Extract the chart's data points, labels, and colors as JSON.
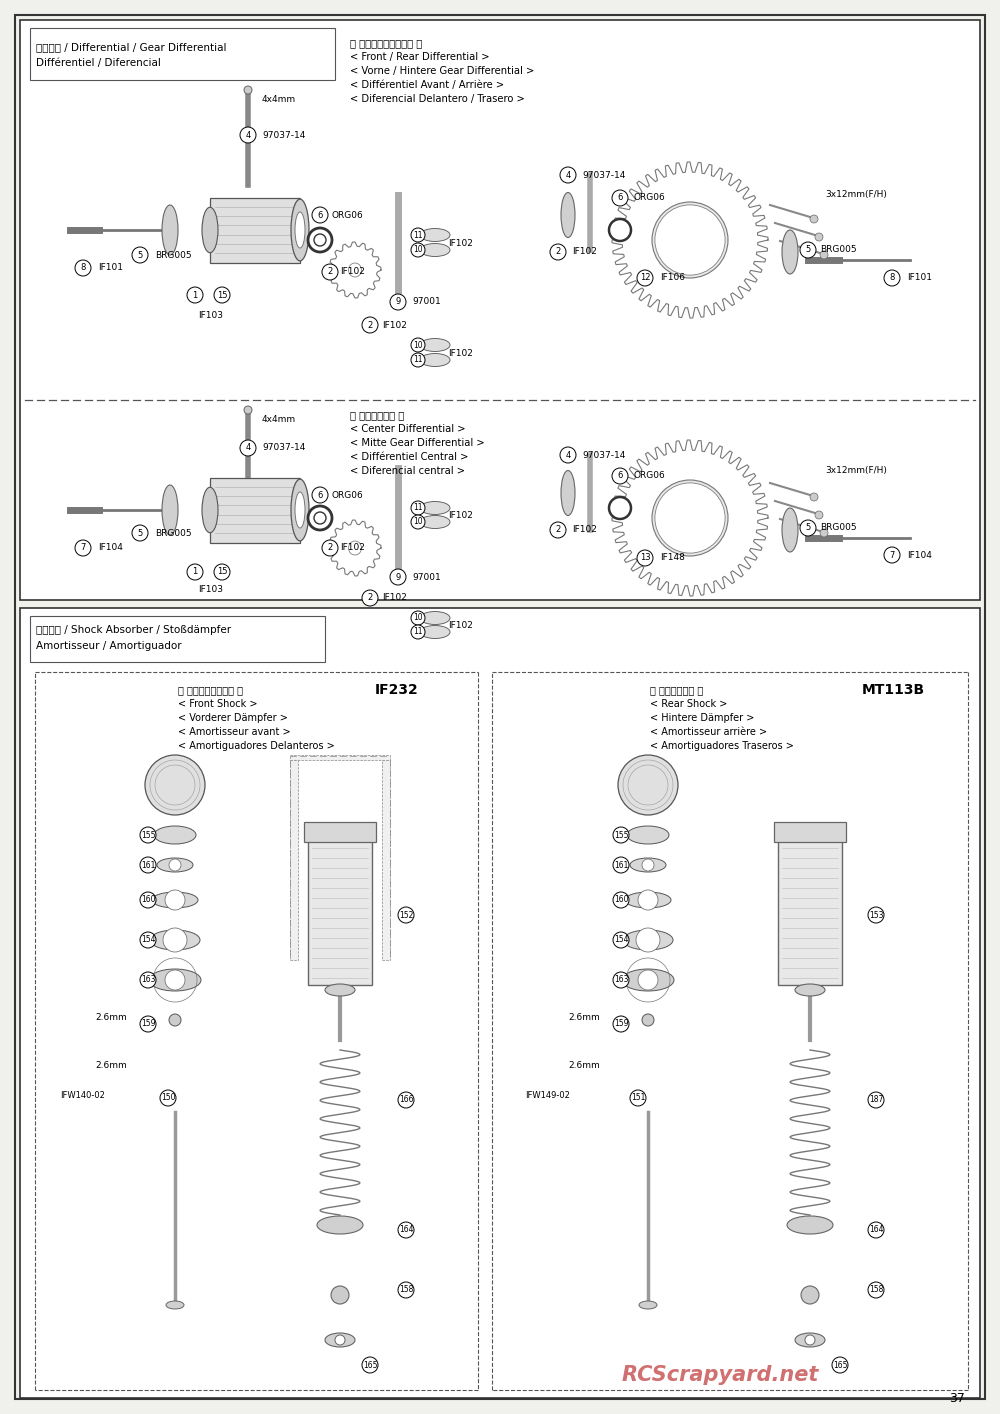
{
  "page_number": "37",
  "bg_color": "#f0f0ec",
  "white": "#ffffff",
  "dark": "#222222",
  "mid": "#666666",
  "light": "#cccccc",
  "s1_title1": "デフギヤ / Differential / Gear Differential",
  "s1_title2": "Différentiel / Diferencial",
  "s1_right": [
    "＜ フロント／リヤデフ ＞",
    "< Front / Rear Differential >",
    "< Vorne / Hintere Gear Differential >",
    "< Différentiel Avant / Arrière >",
    "< Diferencial Delantero / Trasero >"
  ],
  "s2_right": [
    "＜ センターデフ ＞",
    "< Center Differential >",
    "< Mitte Gear Differential >",
    "< Différentiel Central >",
    "< Diferencial central >"
  ],
  "s3_title1": "ダンパー / Shock Absorber / Stoßdämpfer",
  "s3_title2": "Amortisseur / Amortiguador",
  "front_hdr": [
    "＜ フロントダンパー ＞",
    "< Front Shock >",
    "< Vorderer Dämpfer >",
    "< Amortisseur avant >",
    "< Amortiguadores Delanteros >"
  ],
  "front_code": "IF232",
  "rear_hdr": [
    "＜ リヤダンパー ＞",
    "< Rear Shock >",
    "< Hintere Dämpfer >",
    "< Amortisseur arrière >",
    "< Amortiguadores Traseros >"
  ],
  "rear_code": "MT113B",
  "watermark": "RCScrapyard.net"
}
